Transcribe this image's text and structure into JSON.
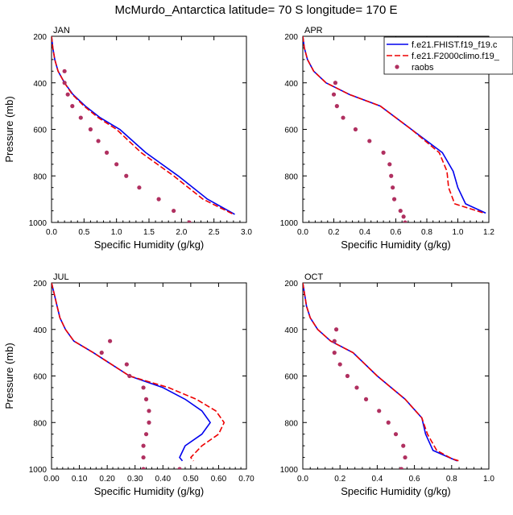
{
  "title": "McMurdo_Antarctica  latitude= 70 S longitude= 170 E",
  "legend": {
    "entries": [
      "f.e21.FHIST.f19_f19.c",
      "f.e21.F2000climo.f19_",
      "raobs"
    ],
    "placement": "top-right"
  },
  "colors": {
    "FHIST": "#0000ee",
    "F2000climo": "#ee0000",
    "raobs": "#b03060"
  },
  "chart_data": [
    {
      "type": "line",
      "panel": "JAN",
      "xlabel": "Specific Humidity (g/kg)",
      "ylabel": "Pressure (mb)",
      "xlim": [
        0,
        3.0
      ],
      "ylim": [
        200,
        1000
      ],
      "y_inverted": true,
      "xticks": [
        "0.0",
        "0.5",
        "1.0",
        "1.5",
        "2.0",
        "2.5",
        "3.0"
      ],
      "yticks": [
        "200",
        "400",
        "600",
        "800",
        "1000"
      ],
      "series": [
        {
          "name": "f.e21.FHIST.f19_f19.c",
          "style": "solid",
          "x": [
            0.0,
            0.02,
            0.05,
            0.1,
            0.2,
            0.33,
            0.52,
            0.75,
            1.05,
            1.45,
            1.95,
            2.4,
            2.82
          ],
          "y": [
            200,
            250,
            300,
            350,
            400,
            450,
            500,
            550,
            600,
            700,
            800,
            900,
            965
          ]
        },
        {
          "name": "f.e21.F2000climo.f19_",
          "style": "dashed",
          "x": [
            0.0,
            0.02,
            0.05,
            0.1,
            0.2,
            0.32,
            0.5,
            0.72,
            1.0,
            1.38,
            1.88,
            2.33,
            2.8
          ],
          "y": [
            200,
            250,
            300,
            350,
            400,
            450,
            500,
            550,
            600,
            700,
            800,
            900,
            965
          ]
        },
        {
          "name": "raobs",
          "style": "markers",
          "x": [
            0.2,
            0.2,
            0.25,
            0.32,
            0.45,
            0.6,
            0.72,
            0.85,
            1.0,
            1.15,
            1.35,
            1.65,
            1.88,
            2.12
          ],
          "y": [
            350,
            400,
            450,
            500,
            550,
            600,
            650,
            700,
            750,
            800,
            850,
            900,
            950,
            1000
          ]
        }
      ]
    },
    {
      "type": "line",
      "panel": "APR",
      "xlabel": "Specific Humidity (g/kg)",
      "ylabel": "",
      "xlim": [
        0,
        1.2
      ],
      "ylim": [
        200,
        1000
      ],
      "y_inverted": true,
      "xticks": [
        "0.0",
        "0.2",
        "0.4",
        "0.6",
        "0.8",
        "1.0",
        "1.2"
      ],
      "yticks": [
        "200",
        "400",
        "600",
        "800",
        "1000"
      ],
      "series": [
        {
          "name": "f.e21.FHIST.f19_f19.c",
          "style": "solid",
          "x": [
            0.0,
            0.01,
            0.03,
            0.07,
            0.15,
            0.3,
            0.5,
            0.7,
            0.9,
            0.97,
            1.0,
            1.05,
            1.18
          ],
          "y": [
            200,
            250,
            300,
            350,
            400,
            450,
            500,
            600,
            700,
            780,
            850,
            920,
            960
          ]
        },
        {
          "name": "f.e21.F2000climo.f19_",
          "style": "dashed",
          "x": [
            0.0,
            0.01,
            0.03,
            0.07,
            0.15,
            0.3,
            0.5,
            0.7,
            0.88,
            0.93,
            0.94,
            0.98,
            1.17
          ],
          "y": [
            200,
            250,
            300,
            350,
            400,
            450,
            500,
            600,
            700,
            780,
            850,
            920,
            960
          ]
        },
        {
          "name": "raobs",
          "style": "markers",
          "x": [
            0.21,
            0.2,
            0.22,
            0.26,
            0.34,
            0.43,
            0.52,
            0.56,
            0.57,
            0.58,
            0.59,
            0.63,
            0.65,
            0.66
          ],
          "y": [
            400,
            450,
            500,
            550,
            600,
            650,
            700,
            750,
            800,
            850,
            900,
            950,
            975,
            1000
          ]
        }
      ]
    },
    {
      "type": "line",
      "panel": "JUL",
      "xlabel": "Specific Humidity (g/kg)",
      "ylabel": "Pressure (mb)",
      "xlim": [
        0,
        0.7
      ],
      "ylim": [
        200,
        1000
      ],
      "y_inverted": true,
      "xticks": [
        "0.00",
        "0.10",
        "0.20",
        "0.30",
        "0.40",
        "0.50",
        "0.60",
        "0.70"
      ],
      "yticks": [
        "200",
        "400",
        "600",
        "800",
        "1000"
      ],
      "series": [
        {
          "name": "f.e21.FHIST.f19_f19.c",
          "style": "solid",
          "x": [
            0.0,
            0.01,
            0.02,
            0.03,
            0.05,
            0.08,
            0.15,
            0.28,
            0.4,
            0.48,
            0.54,
            0.57,
            0.54,
            0.48,
            0.46,
            0.47
          ],
          "y": [
            200,
            250,
            300,
            350,
            400,
            450,
            500,
            600,
            650,
            700,
            750,
            800,
            850,
            900,
            950,
            965
          ]
        },
        {
          "name": "f.e21.F2000climo.f19_",
          "style": "dashed",
          "x": [
            0.0,
            0.01,
            0.02,
            0.03,
            0.05,
            0.08,
            0.15,
            0.28,
            0.42,
            0.52,
            0.59,
            0.62,
            0.6,
            0.54,
            0.5,
            0.51
          ],
          "y": [
            200,
            250,
            300,
            350,
            400,
            450,
            500,
            600,
            650,
            700,
            750,
            800,
            850,
            900,
            950,
            965
          ]
        },
        {
          "name": "raobs",
          "style": "markers",
          "x": [
            0.21,
            0.18,
            0.27,
            0.28,
            0.33,
            0.34,
            0.35,
            0.35,
            0.34,
            0.33,
            0.33,
            0.33,
            0.46
          ],
          "y": [
            450,
            500,
            550,
            600,
            650,
            700,
            750,
            800,
            850,
            900,
            950,
            1000,
            1000
          ]
        }
      ]
    },
    {
      "type": "line",
      "panel": "OCT",
      "xlabel": "Specific Humidity (g/kg)",
      "ylabel": "",
      "xlim": [
        0,
        1.0
      ],
      "ylim": [
        200,
        1000
      ],
      "y_inverted": true,
      "xticks": [
        "0.0",
        "0.2",
        "0.4",
        "0.6",
        "0.8",
        "1.0"
      ],
      "yticks": [
        "200",
        "400",
        "600",
        "800",
        "1000"
      ],
      "series": [
        {
          "name": "f.e21.FHIST.f19_f19.c",
          "style": "solid",
          "x": [
            0.0,
            0.01,
            0.02,
            0.04,
            0.08,
            0.15,
            0.27,
            0.4,
            0.55,
            0.64,
            0.66,
            0.7,
            0.8,
            0.83
          ],
          "y": [
            200,
            250,
            300,
            350,
            400,
            450,
            500,
            600,
            700,
            780,
            850,
            920,
            955,
            965
          ]
        },
        {
          "name": "f.e21.F2000climo.f19_",
          "style": "dashed",
          "x": [
            0.0,
            0.01,
            0.02,
            0.04,
            0.08,
            0.15,
            0.27,
            0.4,
            0.55,
            0.64,
            0.67,
            0.72,
            0.8,
            0.84
          ],
          "y": [
            200,
            250,
            300,
            350,
            400,
            450,
            500,
            600,
            700,
            780,
            850,
            920,
            955,
            965
          ]
        },
        {
          "name": "raobs",
          "style": "markers",
          "x": [
            0.18,
            0.17,
            0.17,
            0.2,
            0.24,
            0.29,
            0.34,
            0.41,
            0.46,
            0.5,
            0.54,
            0.55,
            0.53
          ],
          "y": [
            400,
            450,
            500,
            550,
            600,
            650,
            700,
            750,
            800,
            850,
            900,
            950,
            1000
          ]
        }
      ]
    }
  ]
}
